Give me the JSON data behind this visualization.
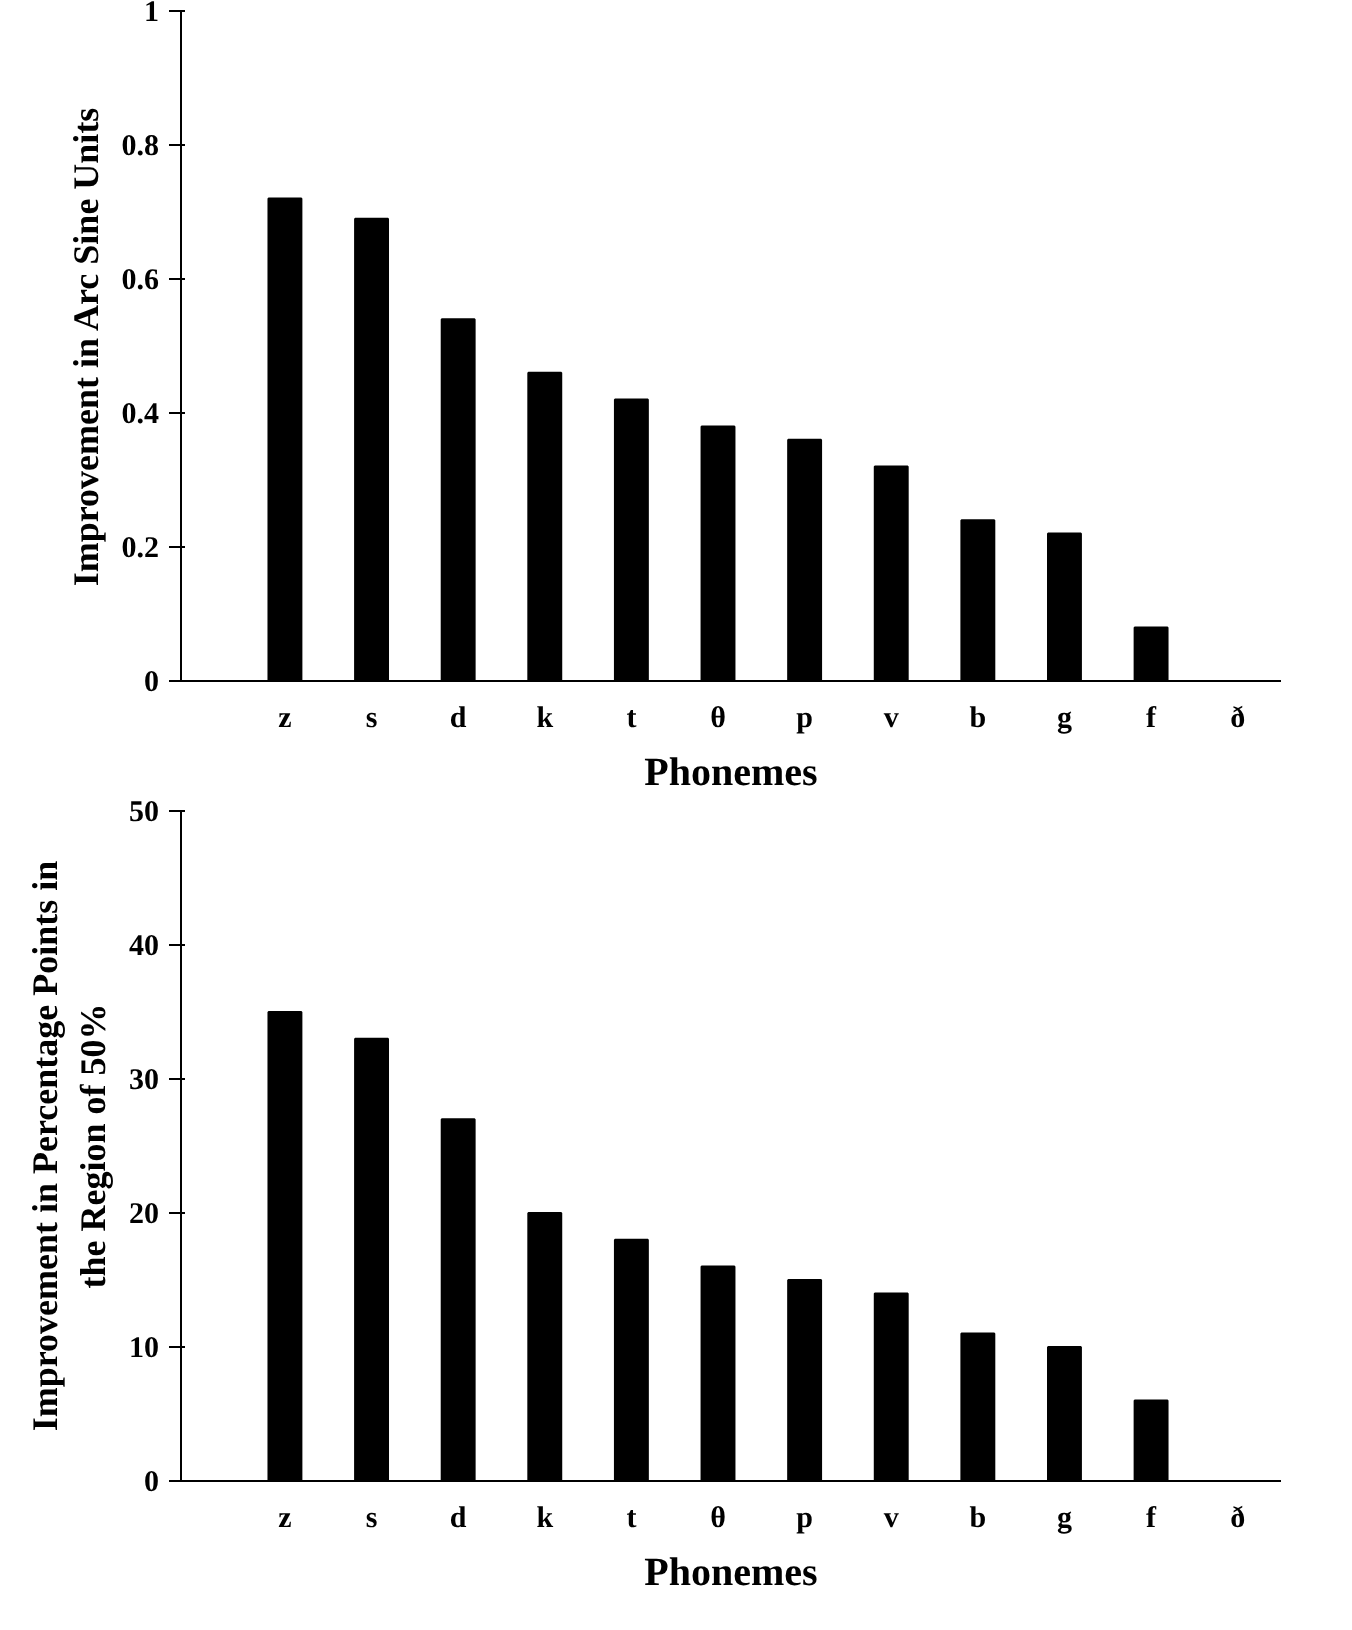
{
  "chart_data": [
    {
      "type": "bar",
      "xlabel": "Phonemes",
      "ylabel": "Improvement in Arc Sine Units",
      "categories": [
        "z",
        "s",
        "d",
        "k",
        "t",
        "θ",
        "p",
        "v",
        "b",
        "g",
        "f",
        "ð"
      ],
      "values": [
        0.72,
        0.69,
        0.54,
        0.46,
        0.42,
        0.38,
        0.36,
        0.32,
        0.24,
        0.22,
        0.08,
        0
      ],
      "color": "#000000",
      "ylim": [
        0,
        1
      ],
      "yticks": [
        0,
        0.2,
        0.4,
        0.6,
        0.8,
        1
      ],
      "grid": false
    },
    {
      "type": "bar",
      "xlabel": "Phonemes",
      "ylabel": "Improvement in Percentage Points in the Region of 50%",
      "categories": [
        "z",
        "s",
        "d",
        "k",
        "t",
        "θ",
        "p",
        "v",
        "b",
        "g",
        "f",
        "ð"
      ],
      "values": [
        35,
        33,
        27,
        20,
        18,
        16,
        15,
        14,
        11,
        10,
        6,
        0
      ],
      "color": "#000000",
      "ylim": [
        0,
        50
      ],
      "yticks": [
        0,
        10,
        20,
        30,
        40,
        50
      ],
      "grid": false
    }
  ]
}
